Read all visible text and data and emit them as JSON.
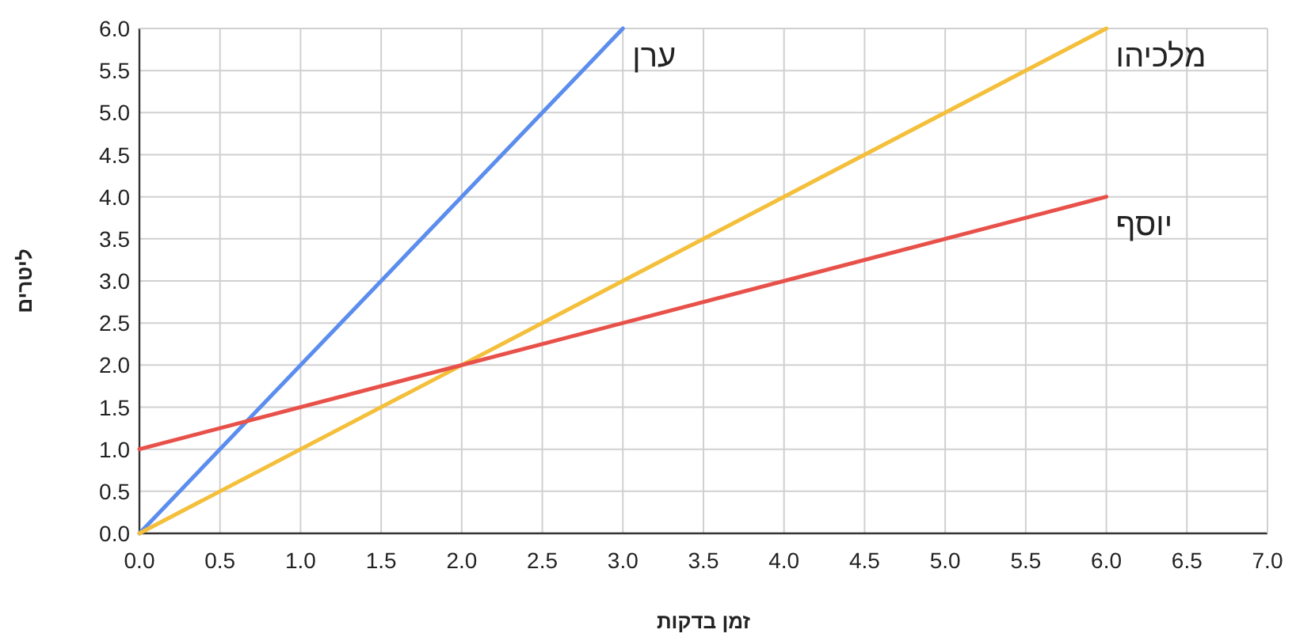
{
  "chart_data": {
    "type": "line",
    "xlabel": "זמן בדקות",
    "ylabel": "ליטרים",
    "xlim": [
      0,
      7
    ],
    "ylim": [
      0,
      6
    ],
    "xticks": [
      {
        "value": 0,
        "label": "0.0"
      },
      {
        "value": 0.5,
        "label": "0.5"
      },
      {
        "value": 1,
        "label": "1.0"
      },
      {
        "value": 1.5,
        "label": "1.5"
      },
      {
        "value": 2,
        "label": "2.0"
      },
      {
        "value": 2.5,
        "label": "2.5"
      },
      {
        "value": 3,
        "label": "3.0"
      },
      {
        "value": 3.5,
        "label": "3.5"
      },
      {
        "value": 4,
        "label": "4.0"
      },
      {
        "value": 4.5,
        "label": "4.5"
      },
      {
        "value": 5,
        "label": "5.0"
      },
      {
        "value": 5.5,
        "label": "5.5"
      },
      {
        "value": 6,
        "label": "6.0"
      },
      {
        "value": 6.5,
        "label": "6.5"
      },
      {
        "value": 7,
        "label": "7.0"
      }
    ],
    "yticks": [
      {
        "value": 0,
        "label": "0.0"
      },
      {
        "value": 0.5,
        "label": "0.5"
      },
      {
        "value": 1,
        "label": "1.0"
      },
      {
        "value": 1.5,
        "label": "1.5"
      },
      {
        "value": 2,
        "label": "2.0"
      },
      {
        "value": 2.5,
        "label": "2.5"
      },
      {
        "value": 3,
        "label": "3.0"
      },
      {
        "value": 3.5,
        "label": "3.5"
      },
      {
        "value": 4,
        "label": "4.0"
      },
      {
        "value": 4.5,
        "label": "4.5"
      },
      {
        "value": 5,
        "label": "5.0"
      },
      {
        "value": 5.5,
        "label": "5.5"
      },
      {
        "value": 6,
        "label": "6.0"
      }
    ],
    "grid": true,
    "marker": "none",
    "line_style": "solid",
    "series": [
      {
        "name": "ערן",
        "color": "#5b8def",
        "x": [
          0,
          3
        ],
        "values": [
          0,
          6
        ]
      },
      {
        "name": "מלכיהו",
        "color": "#f4bf3a",
        "x": [
          0,
          6
        ],
        "values": [
          0,
          6
        ]
      },
      {
        "name": "יוסף",
        "color": "#e8514a",
        "x": [
          0,
          6
        ],
        "values": [
          1,
          4
        ]
      }
    ]
  }
}
